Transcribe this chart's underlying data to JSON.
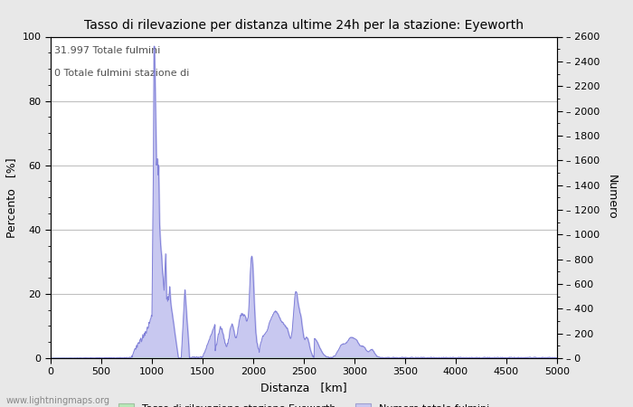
{
  "title": "Tasso di rilevazione per distanza ultime 24h per la stazione: Eyeworth",
  "xlabel": "Distanza   [km]",
  "ylabel_left": "Percento   [%]",
  "ylabel_right": "Numero",
  "annotation_line1": "31.997 Totale fulmini",
  "annotation_line2": "0 Totale fulmini stazione di",
  "xlim": [
    0,
    5000
  ],
  "ylim_left": [
    0,
    100
  ],
  "ylim_right": [
    0,
    2600
  ],
  "xticks": [
    0,
    500,
    1000,
    1500,
    2000,
    2500,
    3000,
    3500,
    4000,
    4500,
    5000
  ],
  "yticks_left": [
    0,
    20,
    40,
    60,
    80,
    100
  ],
  "yticks_right": [
    0,
    200,
    400,
    600,
    800,
    1000,
    1200,
    1400,
    1600,
    1800,
    2000,
    2200,
    2400,
    2600
  ],
  "legend_label_green": "Tasso di rilevazione stazione Eyeworth",
  "legend_label_blue": "Numero totale fulmini",
  "watermark": "www.lightningmaps.org",
  "line_color": "#8080d8",
  "fill_green_color": "#b8e8b8",
  "fill_blue_color": "#c8c8f0",
  "background_color": "#e8e8e8",
  "plot_background": "#ffffff",
  "grid_color": "#c0c0c0"
}
